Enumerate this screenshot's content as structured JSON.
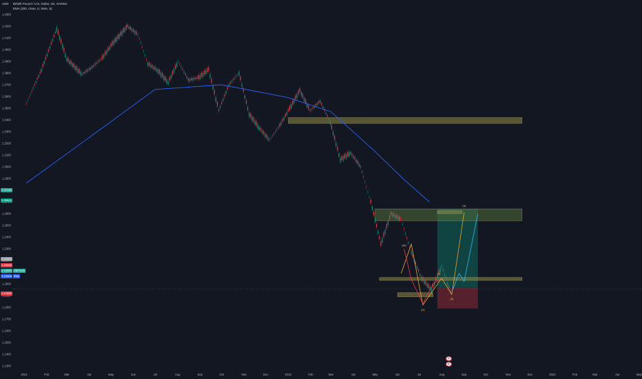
{
  "header": {
    "symbol_line": "British Pound / U.S. Dollar, 1D, OANDA",
    "indicator_line": "EMA (200, close, 0, SMA, 5)",
    "currency": "USD"
  },
  "price_tags": [
    {
      "label": "1.27145",
      "color": "#26a69a"
    },
    {
      "label": "1.25902",
      "color": "#089981"
    },
    {
      "label": "1.21000",
      "color": "#9598a1"
    },
    {
      "label": "1.20906",
      "color": "#f23645"
    },
    {
      "label": "1.19585",
      "color": "#26a69a"
    },
    {
      "label": "1.19405",
      "color": "#2962ff"
    },
    {
      "label": "1.17856",
      "color": "#f23645"
    }
  ],
  "side_tags": [
    {
      "label": "GBP/USD",
      "color": "#26a69a"
    },
    {
      "label": "EMA",
      "color": "#2962ff"
    }
  ],
  "wave_labels": [
    "(W)",
    "(X)",
    "(1)",
    "(2)",
    "(3)"
  ],
  "badges": [
    "E",
    "E"
  ],
  "chart_data": {
    "type": "line",
    "series": [
      {
        "name": "",
        "x": [
          "2021-01-04",
          "2021-01-25",
          "2021-02-15",
          "2021-03-01",
          "2021-03-22",
          "2021-04-05",
          "2021-04-19",
          "2021-05-03",
          "2021-05-24",
          "2021-06-07",
          "2021-06-21",
          "2021-07-05",
          "2021-07-19",
          "2021-08-02",
          "2021-08-16",
          "2021-08-30",
          "2021-09-13",
          "2021-09-27",
          "2021-10-11",
          "2021-10-25",
          "2021-11-08",
          "2021-11-22",
          "2021-12-06",
          "2021-12-20",
          "2022-01-03",
          "2022-01-17",
          "2022-01-31",
          "2022-02-14",
          "2022-02-28",
          "2022-03-14",
          "2022-03-28",
          "2022-04-11",
          "2022-04-25",
          "2022-05-09",
          "2022-05-23",
          "2022-06-06",
          "2022-06-20",
          "2022-07-04",
          "2022-07-18",
          "2022-08-01",
          "2022-08-15"
        ],
        "values": [
          1.354,
          1.383,
          1.418,
          1.392,
          1.379,
          1.385,
          1.393,
          1.405,
          1.42,
          1.413,
          1.388,
          1.382,
          1.372,
          1.39,
          1.374,
          1.376,
          1.383,
          1.348,
          1.37,
          1.38,
          1.345,
          1.333,
          1.323,
          1.335,
          1.35,
          1.365,
          1.348,
          1.356,
          1.338,
          1.306,
          1.312,
          1.3,
          1.27,
          1.234,
          1.26,
          1.255,
          1.227,
          1.205,
          1.195,
          1.215,
          1.19
        ]
      },
      {
        "name": "",
        "x": [
          "2021-01-04",
          "2021-04-01",
          "2021-07-01",
          "2021-10-01",
          "2022-01-01",
          "2022-03-01",
          "2022-05-01",
          "2022-06-10",
          "2022-07-15"
        ],
        "values": [
          1.286,
          1.325,
          1.366,
          1.37,
          1.359,
          1.347,
          1.313,
          1.289,
          1.27
        ]
      }
    ],
    "zones": [
      {
        "from": "2022-01-01",
        "to": "2022-11-20",
        "low": 1.337,
        "high": 1.342,
        "color": "#8d8b47"
      },
      {
        "from": "2022-05-01",
        "to": "2022-11-20",
        "low": 1.254,
        "high": 1.264,
        "color": "#4f6b36"
      },
      {
        "from": "2022-05-07",
        "to": "2022-11-20",
        "low": 1.203,
        "high": 1.2055,
        "color": "#8d8b47"
      },
      {
        "from": "2022-06-01",
        "to": "2022-07-20",
        "low": 1.189,
        "high": 1.1925,
        "color": "#8d8b47"
      },
      {
        "from": "2022-07-26",
        "to": "2022-08-29",
        "low": 1.26,
        "high": 1.2625,
        "color": "#8d8b47"
      }
    ],
    "x_ticks": [
      "2021",
      "Feb",
      "Mar",
      "Apr",
      "May",
      "Jun",
      "Jul",
      "Aug",
      "Sep",
      "Oct",
      "Nov",
      "Dec",
      "2022",
      "Feb",
      "Mar",
      "Apr",
      "May",
      "Jun",
      "Jul",
      "Aug",
      "Sep",
      "Oct",
      "Nov",
      "Dec",
      "2023",
      "Feb",
      "Mar",
      "Apr",
      "May"
    ],
    "y_ticks": [
      1.43,
      1.42,
      1.41,
      1.4,
      1.39,
      1.38,
      1.37,
      1.36,
      1.35,
      1.34,
      1.33,
      1.32,
      1.31,
      1.3,
      1.29,
      1.28,
      1.27,
      1.26,
      1.25,
      1.24,
      1.23,
      1.22,
      1.21,
      1.2,
      1.19,
      1.18,
      1.17,
      1.16,
      1.15,
      1.14,
      1.13
    ],
    "ylim": [
      1.125,
      1.435
    ],
    "grid": false
  }
}
